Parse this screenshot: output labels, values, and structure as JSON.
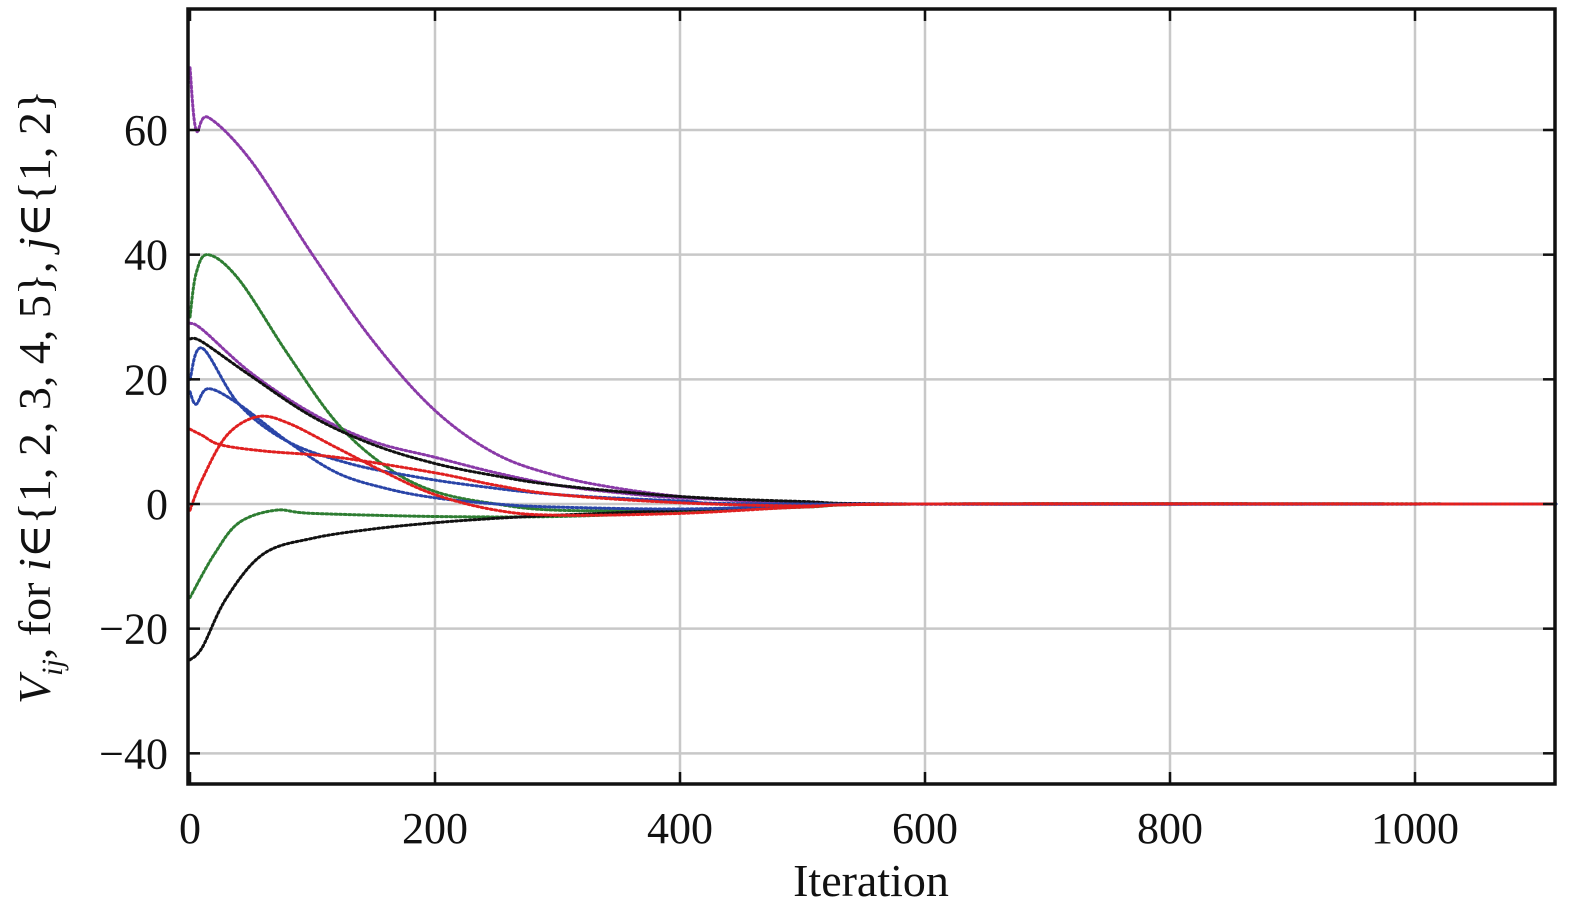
{
  "chart_data": {
    "type": "line",
    "xlabel": "Iteration",
    "ylabel": "V_ij, for i∈{1, 2, 3, 4, 5}, j∈{1, 2}",
    "ylabel_parts": {
      "var": "V",
      "sub": "ij",
      "rest": ", for ",
      "i": "i",
      "i_set": "∈{1, 2, 3, 4, 5}, ",
      "j": "j",
      "j_set": "∈{1, 2}"
    },
    "xlim": [
      0,
      1115
    ],
    "ylim": [
      -45,
      80
    ],
    "xticks": [
      0,
      200,
      400,
      600,
      800,
      1000
    ],
    "yticks": [
      -40,
      -20,
      0,
      20,
      40,
      60
    ],
    "xtick_labels": [
      "0",
      "200",
      "400",
      "600",
      "800",
      "1000"
    ],
    "ytick_labels": [
      "−40",
      "−20",
      "0",
      "20",
      "40",
      "60"
    ],
    "grid": true,
    "legend": "none",
    "series": [
      {
        "color": "#8a3aa8",
        "points": [
          [
            0,
            70
          ],
          [
            5,
            60
          ],
          [
            15,
            62
          ],
          [
            50,
            55
          ],
          [
            100,
            40
          ],
          [
            150,
            26
          ],
          [
            200,
            15
          ],
          [
            250,
            8
          ],
          [
            300,
            4.5
          ],
          [
            350,
            2.5
          ],
          [
            400,
            1.2
          ],
          [
            450,
            0.5
          ],
          [
            500,
            0.2
          ],
          [
            600,
            0
          ],
          [
            1115,
            0
          ]
        ]
      },
      {
        "color": "#8a3aa8",
        "points": [
          [
            0,
            29
          ],
          [
            10,
            28
          ],
          [
            50,
            21
          ],
          [
            100,
            14.5
          ],
          [
            150,
            10
          ],
          [
            200,
            7.5
          ],
          [
            250,
            5
          ],
          [
            300,
            3
          ],
          [
            350,
            1.8
          ],
          [
            400,
            1
          ],
          [
            500,
            0.3
          ],
          [
            600,
            0
          ],
          [
            1115,
            0
          ]
        ]
      },
      {
        "color": "#2e7d32",
        "points": [
          [
            0,
            30
          ],
          [
            5,
            37
          ],
          [
            15,
            40
          ],
          [
            40,
            36
          ],
          [
            80,
            24
          ],
          [
            120,
            13
          ],
          [
            160,
            6
          ],
          [
            200,
            2
          ],
          [
            250,
            0
          ],
          [
            300,
            -1
          ],
          [
            400,
            -1
          ],
          [
            500,
            -0.5
          ],
          [
            600,
            0
          ],
          [
            1115,
            0
          ]
        ]
      },
      {
        "color": "#2e7d32",
        "points": [
          [
            0,
            -15
          ],
          [
            20,
            -8
          ],
          [
            40,
            -3
          ],
          [
            70,
            -1
          ],
          [
            100,
            -1.5
          ],
          [
            200,
            -2
          ],
          [
            300,
            -2
          ],
          [
            400,
            -1.3
          ],
          [
            500,
            -0.5
          ],
          [
            600,
            0
          ],
          [
            1115,
            0
          ]
        ]
      },
      {
        "color": "#111111",
        "points": [
          [
            0,
            26.5
          ],
          [
            10,
            26
          ],
          [
            50,
            20.5
          ],
          [
            100,
            14
          ],
          [
            150,
            9.5
          ],
          [
            200,
            6.5
          ],
          [
            250,
            4.5
          ],
          [
            300,
            3
          ],
          [
            400,
            1.2
          ],
          [
            500,
            0.4
          ],
          [
            600,
            0
          ],
          [
            1115,
            0
          ]
        ]
      },
      {
        "color": "#111111",
        "points": [
          [
            0,
            -25
          ],
          [
            10,
            -23
          ],
          [
            30,
            -15
          ],
          [
            60,
            -8
          ],
          [
            100,
            -5.5
          ],
          [
            150,
            -4
          ],
          [
            200,
            -3
          ],
          [
            250,
            -2.3
          ],
          [
            300,
            -1.8
          ],
          [
            400,
            -1
          ],
          [
            500,
            -0.3
          ],
          [
            600,
            0
          ],
          [
            1115,
            0
          ]
        ]
      },
      {
        "color": "#2a45a8",
        "points": [
          [
            0,
            18
          ],
          [
            5,
            16
          ],
          [
            15,
            18.5
          ],
          [
            40,
            16
          ],
          [
            80,
            10
          ],
          [
            120,
            5
          ],
          [
            160,
            2.5
          ],
          [
            200,
            1
          ],
          [
            250,
            0
          ],
          [
            300,
            -0.5
          ],
          [
            400,
            -0.8
          ],
          [
            500,
            -0.3
          ],
          [
            600,
            0
          ],
          [
            1115,
            0
          ]
        ]
      },
      {
        "color": "#2a45a8",
        "points": [
          [
            0,
            20
          ],
          [
            10,
            25
          ],
          [
            40,
            16
          ],
          [
            80,
            10
          ],
          [
            130,
            6.5
          ],
          [
            180,
            4.5
          ],
          [
            230,
            3
          ],
          [
            300,
            1.5
          ],
          [
            400,
            0.5
          ],
          [
            500,
            0
          ],
          [
            1115,
            0
          ]
        ]
      },
      {
        "color": "#e02020",
        "points": [
          [
            0,
            12
          ],
          [
            10,
            11
          ],
          [
            25,
            9.5
          ],
          [
            60,
            8.5
          ],
          [
            120,
            7.5
          ],
          [
            200,
            5
          ],
          [
            250,
            3
          ],
          [
            300,
            1.5
          ],
          [
            400,
            0.2
          ],
          [
            500,
            -0.3
          ],
          [
            600,
            0
          ],
          [
            1115,
            0
          ]
        ]
      },
      {
        "color": "#e02020",
        "points": [
          [
            0,
            -1
          ],
          [
            10,
            4
          ],
          [
            30,
            11
          ],
          [
            55,
            14
          ],
          [
            80,
            13
          ],
          [
            120,
            9
          ],
          [
            160,
            5
          ],
          [
            200,
            1.5
          ],
          [
            250,
            -1
          ],
          [
            300,
            -1.8
          ],
          [
            400,
            -1.5
          ],
          [
            500,
            -0.5
          ],
          [
            600,
            0
          ],
          [
            1115,
            0
          ]
        ]
      }
    ]
  }
}
